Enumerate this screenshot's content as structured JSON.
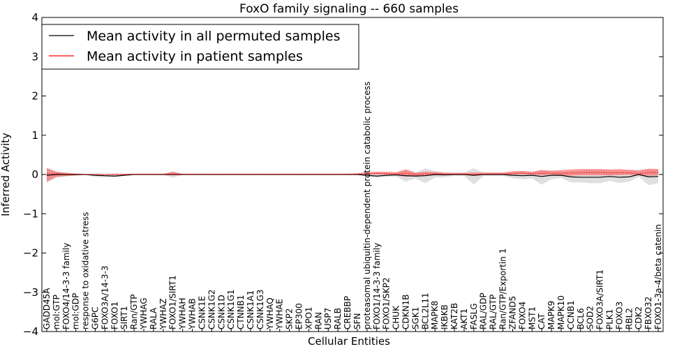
{
  "chart_data": {
    "type": "line",
    "title": "FoxO family signaling -- 660 samples",
    "xlabel": "Cellular Entities",
    "ylabel": "Inferred Activity",
    "ylim": [
      -4,
      4
    ],
    "yticks": [
      -4,
      -3,
      -2,
      -1,
      0,
      1,
      2,
      3,
      4
    ],
    "ytick_labels": [
      "−4",
      "−3",
      "−2",
      "−1",
      "0",
      "1",
      "2",
      "3",
      "4"
    ],
    "legend_position": "top-left",
    "colors": {
      "permuted_line": "#000000",
      "permuted_band": "#b0b0b0",
      "patient_line": "#ff0000",
      "patient_band": "#ff4d4d"
    },
    "categories": [
      "GADD45A",
      "mol:GTP",
      "FOXO4/14-3-3 family",
      "mol:GDP",
      "response to oxidative stress",
      "G6PC",
      "FOXO3A/14-3-3",
      "FOXO1",
      "SIRT1",
      "Ran/GTP",
      "YWHAG",
      "RALA",
      "YWHAZ",
      "FOXO1/SIRT1",
      "YWHAH",
      "YWHAB",
      "CSNK1E",
      "CSNK1G2",
      "CSNK1D",
      "CSNK1G1",
      "CTNNB1",
      "CSNK1A1",
      "CSNK1G3",
      "YWHAQ",
      "YWHAE",
      "SKP2",
      "EP300",
      "XPO1",
      "RAN",
      "USP7",
      "RALB",
      "CREBBP",
      "SFN",
      "proteasomal ubiquitin-dependent protein catabolic process",
      "FOXO1/14-3-3 family",
      "FOXO1/SKP2",
      "CHUK",
      "CDKN1B",
      "SGK1",
      "BCL2L11",
      "MAPK8",
      "IKBKB",
      "KAT2B",
      "AKT1",
      "FASLG",
      "RAL/GDP",
      "RAL/GTP",
      "Ran/GTP/Exportin 1",
      "ZFAND5",
      "FOXO4",
      "MST1",
      "CAT",
      "MAPK9",
      "MAPK10",
      "CCNB1",
      "BCL6",
      "SOD2",
      "FOXO3A/SIRT1",
      "PLK1",
      "FOXO3",
      "RBL2",
      "CDK2",
      "FBXO32",
      "FOXO1-3a-4/beta catenin"
    ],
    "series": [
      {
        "name": "Mean activity in all permuted samples",
        "values": [
          -0.02,
          0.0,
          0.0,
          0.0,
          0.0,
          -0.02,
          -0.03,
          -0.04,
          -0.02,
          0.0,
          0.0,
          0.0,
          0.0,
          0.0,
          0.0,
          0.0,
          0.0,
          0.0,
          0.0,
          0.0,
          0.0,
          0.0,
          0.0,
          0.0,
          0.0,
          0.0,
          0.0,
          0.0,
          0.0,
          0.0,
          0.0,
          0.0,
          0.0,
          -0.02,
          -0.04,
          -0.02,
          -0.01,
          -0.03,
          -0.04,
          -0.03,
          0.0,
          -0.01,
          0.0,
          0.0,
          -0.02,
          0.0,
          0.0,
          0.0,
          -0.02,
          -0.03,
          -0.02,
          -0.05,
          -0.02,
          -0.02,
          -0.06,
          -0.07,
          -0.07,
          -0.07,
          -0.05,
          -0.07,
          -0.06,
          0.0,
          -0.06,
          -0.05
        ],
        "band_low": [
          -0.22,
          -0.08,
          -0.05,
          -0.03,
          -0.01,
          -0.06,
          -0.07,
          -0.07,
          -0.03,
          -0.01,
          -0.01,
          -0.01,
          -0.01,
          -0.08,
          -0.01,
          -0.01,
          -0.01,
          -0.01,
          -0.01,
          -0.01,
          -0.01,
          -0.01,
          -0.01,
          -0.01,
          -0.01,
          -0.01,
          -0.01,
          -0.01,
          -0.01,
          -0.01,
          -0.01,
          -0.01,
          -0.01,
          -0.05,
          -0.08,
          -0.06,
          -0.05,
          -0.18,
          -0.1,
          -0.22,
          -0.08,
          -0.07,
          -0.03,
          -0.04,
          -0.25,
          -0.04,
          -0.04,
          -0.04,
          -0.09,
          -0.12,
          -0.1,
          -0.26,
          -0.12,
          -0.09,
          -0.2,
          -0.2,
          -0.22,
          -0.22,
          -0.16,
          -0.22,
          -0.18,
          -0.06,
          -0.27,
          -0.22
        ],
        "band_high": [
          0.18,
          0.08,
          0.05,
          0.03,
          0.01,
          0.03,
          0.02,
          0.02,
          0.02,
          0.01,
          0.01,
          0.01,
          0.01,
          0.07,
          0.01,
          0.01,
          0.01,
          0.01,
          0.01,
          0.01,
          0.01,
          0.01,
          0.01,
          0.01,
          0.01,
          0.01,
          0.01,
          0.01,
          0.01,
          0.01,
          0.01,
          0.01,
          0.01,
          0.05,
          0.04,
          0.05,
          0.04,
          0.12,
          0.05,
          0.16,
          0.09,
          0.05,
          0.05,
          0.05,
          0.16,
          0.05,
          0.05,
          0.05,
          0.08,
          0.09,
          0.06,
          0.12,
          0.08,
          0.08,
          0.08,
          0.1,
          0.12,
          0.11,
          0.11,
          0.1,
          0.11,
          0.12,
          0.12,
          0.13
        ]
      },
      {
        "name": "Mean activity in patient samples",
        "values": [
          0.02,
          0.02,
          0.01,
          0.01,
          0.0,
          0.0,
          0.0,
          0.0,
          0.0,
          0.0,
          0.0,
          0.0,
          0.0,
          0.0,
          0.0,
          0.0,
          0.0,
          0.0,
          0.0,
          0.0,
          0.0,
          0.0,
          0.0,
          0.0,
          0.0,
          0.0,
          0.0,
          0.0,
          0.0,
          0.0,
          0.0,
          0.0,
          0.01,
          0.02,
          0.03,
          0.02,
          0.01,
          0.03,
          0.0,
          0.02,
          0.02,
          0.01,
          0.01,
          0.01,
          0.0,
          0.01,
          0.01,
          0.01,
          0.02,
          0.03,
          0.02,
          0.03,
          0.03,
          0.03,
          0.04,
          0.05,
          0.05,
          0.05,
          0.04,
          0.05,
          0.04,
          0.02,
          0.05,
          0.05
        ],
        "band_low": [
          -0.18,
          -0.06,
          -0.04,
          -0.02,
          -0.01,
          -0.01,
          -0.01,
          -0.01,
          -0.01,
          -0.01,
          -0.01,
          -0.01,
          -0.01,
          -0.02,
          -0.01,
          -0.01,
          -0.01,
          -0.01,
          -0.01,
          -0.01,
          -0.01,
          -0.01,
          -0.01,
          -0.01,
          -0.01,
          -0.01,
          -0.01,
          -0.01,
          -0.01,
          -0.01,
          -0.01,
          -0.01,
          -0.01,
          0.0,
          0.0,
          0.0,
          -0.02,
          -0.06,
          -0.04,
          -0.03,
          -0.02,
          -0.01,
          -0.01,
          -0.01,
          -0.03,
          0.0,
          0.0,
          0.0,
          0.0,
          0.0,
          0.0,
          -0.02,
          0.0,
          -0.02,
          -0.03,
          -0.02,
          -0.02,
          -0.02,
          -0.02,
          -0.02,
          -0.01,
          -0.02,
          -0.03,
          -0.02
        ],
        "band_high": [
          0.16,
          0.07,
          0.04,
          0.02,
          0.01,
          0.01,
          0.01,
          0.02,
          0.02,
          0.02,
          0.02,
          0.02,
          0.02,
          0.07,
          0.02,
          0.02,
          0.02,
          0.02,
          0.02,
          0.02,
          0.02,
          0.02,
          0.02,
          0.02,
          0.02,
          0.02,
          0.02,
          0.02,
          0.02,
          0.02,
          0.02,
          0.02,
          0.03,
          0.06,
          0.07,
          0.07,
          0.06,
          0.13,
          0.05,
          0.07,
          0.06,
          0.05,
          0.04,
          0.04,
          0.05,
          0.05,
          0.05,
          0.05,
          0.08,
          0.09,
          0.07,
          0.11,
          0.1,
          0.11,
          0.13,
          0.14,
          0.14,
          0.14,
          0.13,
          0.14,
          0.12,
          0.1,
          0.15,
          0.14
        ]
      }
    ]
  }
}
